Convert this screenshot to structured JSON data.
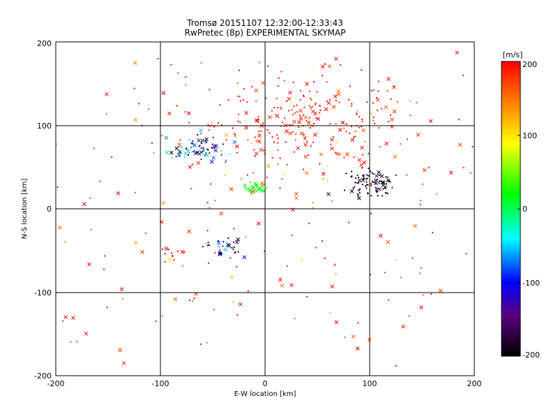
{
  "chart_data": [
    {
      "type": "scatter",
      "title": "Tromsø 20151107 12:32:00-12:33:43",
      "subtitle": "RwPretec (8p) EXPERIMENTAL SKYMAP",
      "xlabel": "E-W location [km]",
      "ylabel": "N-S location [km]",
      "xlim": [
        -200,
        200
      ],
      "ylim": [
        -200,
        200
      ],
      "xticks": [
        "-200",
        "-100",
        "0",
        "100",
        "200"
      ],
      "yticks": [
        "-200",
        "-100",
        "0",
        "100",
        "200"
      ],
      "grid": true,
      "marker_types": [
        "x",
        "dot"
      ],
      "clusters": [
        {
          "cx": 40,
          "cy": 105,
          "sx": 55,
          "sy": 28,
          "n": 260,
          "v": 190,
          "dv": 15
        },
        {
          "cx": -65,
          "cy": 72,
          "sx": 14,
          "sy": 7,
          "n": 80,
          "v": -110,
          "dv": 70
        },
        {
          "cx": 102,
          "cy": 30,
          "sx": 14,
          "sy": 8,
          "n": 90,
          "v": -190,
          "dv": 20
        },
        {
          "cx": -10,
          "cy": 25,
          "sx": 5,
          "sy": 4,
          "n": 25,
          "v": 20,
          "dv": 10
        },
        {
          "cx": -40,
          "cy": -45,
          "sx": 10,
          "sy": 6,
          "n": 30,
          "v": -150,
          "dv": 80
        },
        {
          "cx": -90,
          "cy": -55,
          "sx": 8,
          "sy": 5,
          "n": 12,
          "v": 200,
          "dv": 5
        },
        {
          "cx": 0,
          "cy": 40,
          "sx": 120,
          "sy": 90,
          "n": 180,
          "v": 170,
          "dv": 40
        },
        {
          "cx": 0,
          "cy": -120,
          "sx": 130,
          "sy": 50,
          "n": 55,
          "v": 185,
          "dv": 25
        }
      ],
      "colorbar": {
        "label": "[m/s]",
        "range": [
          -200,
          200
        ],
        "ticks": [
          "200",
          "100",
          "0",
          "-100",
          "-200"
        ],
        "colors": [
          "#000000",
          "#5a0080",
          "#0000ff",
          "#00ffff",
          "#00ff00",
          "#ffff00",
          "#ff8000",
          "#ff0000"
        ]
      }
    }
  ]
}
